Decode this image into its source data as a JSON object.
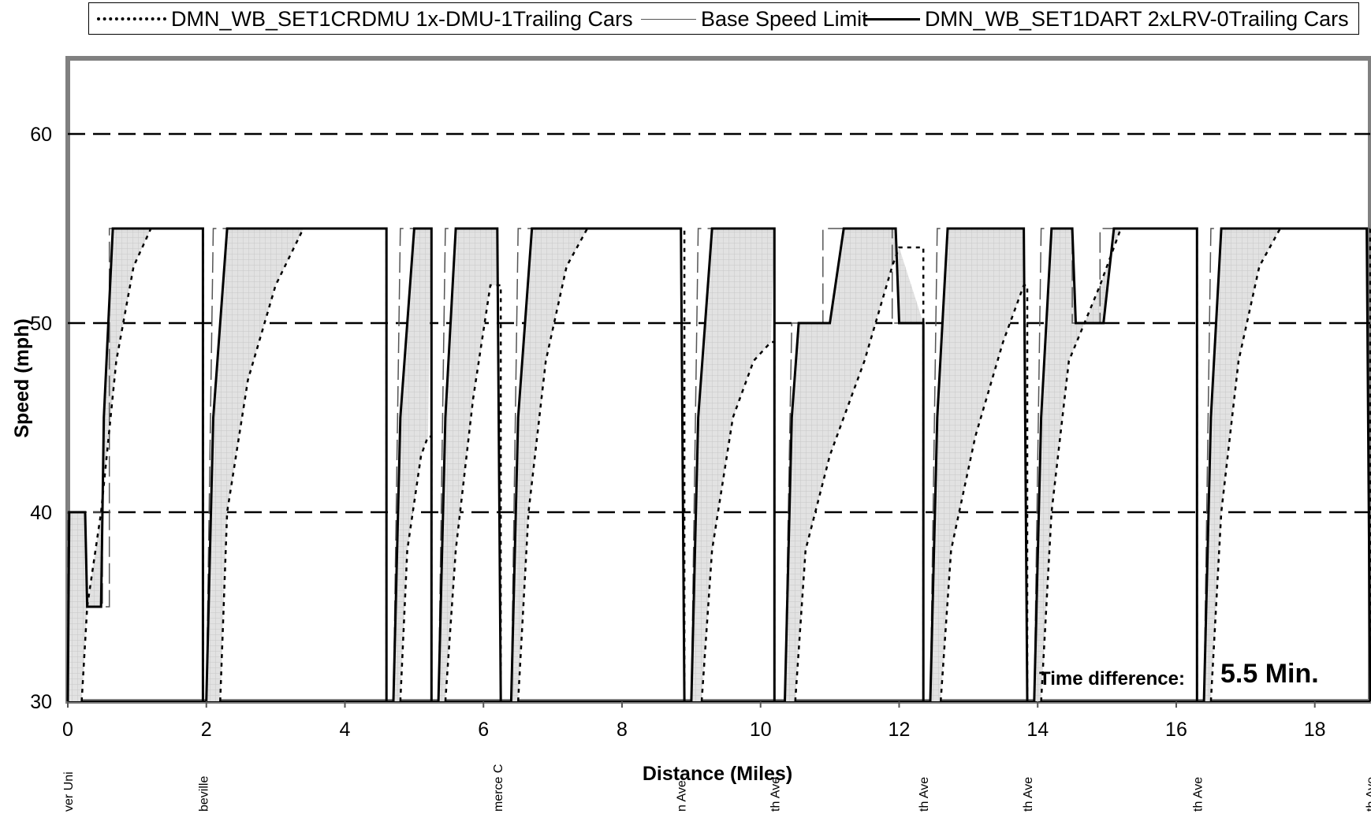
{
  "chart_data": {
    "type": "line",
    "xlabel": "Distance (Miles)",
    "ylabel": "Speed (mph)",
    "xlim": [
      0,
      18.8
    ],
    "ylim": [
      30,
      64
    ],
    "x_ticks": [
      0,
      2,
      4,
      6,
      8,
      10,
      12,
      14,
      16,
      18
    ],
    "y_ticks": [
      30,
      40,
      50,
      60
    ],
    "legend": "top",
    "grid": "major y dashed",
    "series": [
      {
        "name": "DMN_WB_SET1CRDMU 1x-DMU-1Trailing Cars",
        "style": "dotted",
        "color": "#000000"
      },
      {
        "name": "Base Speed Limit",
        "style": "long-dash",
        "color": "#555555"
      },
      {
        "name": "DMN_WB_SET1DART 2xLRV-0Trailing Cars",
        "style": "solid",
        "color": "#000000"
      }
    ],
    "speed_limit": [
      [
        0.0,
        30
      ],
      [
        0.0,
        40
      ],
      [
        0.5,
        40
      ],
      [
        0.5,
        35
      ],
      [
        0.6,
        35
      ],
      [
        0.6,
        55
      ],
      [
        1.9,
        55
      ],
      [
        2.1,
        55
      ],
      [
        4.6,
        55
      ],
      [
        4.8,
        55
      ],
      [
        5.2,
        55
      ],
      [
        5.4,
        55
      ],
      [
        6.2,
        55
      ],
      [
        6.4,
        55
      ],
      [
        8.9,
        55
      ],
      [
        9.1,
        55
      ],
      [
        10.2,
        55
      ],
      [
        10.2,
        50
      ],
      [
        10.9,
        50
      ],
      [
        10.9,
        55
      ],
      [
        11.9,
        55
      ],
      [
        11.9,
        50
      ],
      [
        12.3,
        50
      ],
      [
        12.6,
        50
      ],
      [
        12.6,
        55
      ],
      [
        13.8,
        55
      ],
      [
        14.0,
        55
      ],
      [
        14.5,
        55
      ],
      [
        14.5,
        50
      ],
      [
        14.9,
        50
      ],
      [
        14.9,
        55
      ],
      [
        16.3,
        55
      ],
      [
        16.4,
        55
      ],
      [
        18.8,
        55
      ]
    ],
    "stations": [
      {
        "x": 0.0,
        "label": "ver Uni"
      },
      {
        "x": 1.95,
        "label": "beville"
      },
      {
        "x": 6.2,
        "label": "merce C"
      },
      {
        "x": 8.85,
        "label": "n Ave"
      },
      {
        "x": 10.2,
        "label": "th Ave"
      },
      {
        "x": 12.35,
        "label": "th Ave"
      },
      {
        "x": 13.85,
        "label": "th Ave"
      },
      {
        "x": 16.3,
        "label": "th Ave"
      },
      {
        "x": 18.8,
        "label": "th Ave"
      }
    ],
    "segments": [
      {
        "start": 0.0,
        "end": 1.95,
        "lrv": [
          [
            0.0,
            30
          ],
          [
            0.02,
            40
          ],
          [
            0.25,
            40
          ],
          [
            0.28,
            35
          ],
          [
            0.48,
            35
          ],
          [
            0.52,
            45
          ],
          [
            0.65,
            55
          ],
          [
            1.95,
            55
          ]
        ],
        "dmu": [
          [
            0.2,
            30
          ],
          [
            0.28,
            35
          ],
          [
            0.48,
            40
          ],
          [
            0.7,
            48
          ],
          [
            0.95,
            53
          ],
          [
            1.2,
            55
          ],
          [
            1.9,
            55
          ]
        ],
        "limit": [
          [
            0.0,
            30
          ],
          [
            0.0,
            40
          ],
          [
            0.5,
            40
          ],
          [
            0.5,
            35
          ],
          [
            0.6,
            35
          ],
          [
            0.6,
            55
          ],
          [
            1.9,
            55
          ]
        ]
      },
      {
        "start": 2.0,
        "end": 4.6,
        "lrv": [
          [
            2.0,
            30
          ],
          [
            2.1,
            45
          ],
          [
            2.3,
            55
          ],
          [
            4.6,
            55
          ]
        ],
        "dmu": [
          [
            2.2,
            30
          ],
          [
            2.3,
            40
          ],
          [
            2.6,
            47
          ],
          [
            3.0,
            52
          ],
          [
            3.4,
            55
          ],
          [
            4.55,
            55
          ]
        ],
        "limit": [
          [
            2.0,
            30
          ],
          [
            2.1,
            55
          ],
          [
            4.6,
            55
          ]
        ]
      },
      {
        "start": 4.6,
        "end": 5.25,
        "lrv": [
          [
            4.7,
            30
          ],
          [
            4.8,
            45
          ],
          [
            5.0,
            55
          ],
          [
            5.25,
            55
          ]
        ],
        "dmu": [
          [
            4.8,
            30
          ],
          [
            4.9,
            38
          ],
          [
            5.1,
            43
          ],
          [
            5.2,
            44
          ]
        ],
        "limit": [
          [
            4.7,
            30
          ],
          [
            4.8,
            55
          ],
          [
            5.25,
            55
          ]
        ]
      },
      {
        "start": 5.3,
        "end": 6.25,
        "lrv": [
          [
            5.35,
            30
          ],
          [
            5.45,
            45
          ],
          [
            5.6,
            55
          ],
          [
            6.2,
            55
          ]
        ],
        "dmu": [
          [
            5.45,
            30
          ],
          [
            5.6,
            38
          ],
          [
            5.85,
            46
          ],
          [
            6.1,
            52
          ],
          [
            6.2,
            52
          ]
        ],
        "limit": [
          [
            5.35,
            30
          ],
          [
            5.45,
            55
          ],
          [
            6.2,
            55
          ]
        ]
      },
      {
        "start": 6.3,
        "end": 8.9,
        "lrv": [
          [
            6.4,
            30
          ],
          [
            6.5,
            45
          ],
          [
            6.7,
            55
          ],
          [
            8.85,
            55
          ]
        ],
        "dmu": [
          [
            6.5,
            30
          ],
          [
            6.65,
            40
          ],
          [
            6.9,
            48
          ],
          [
            7.2,
            53
          ],
          [
            7.5,
            55
          ],
          [
            8.85,
            55
          ]
        ],
        "limit": [
          [
            6.4,
            30
          ],
          [
            6.5,
            55
          ],
          [
            8.9,
            55
          ]
        ]
      },
      {
        "start": 8.9,
        "end": 10.2,
        "lrv": [
          [
            9.0,
            30
          ],
          [
            9.1,
            45
          ],
          [
            9.3,
            55
          ],
          [
            10.2,
            55
          ]
        ],
        "dmu": [
          [
            9.15,
            30
          ],
          [
            9.3,
            38
          ],
          [
            9.6,
            45
          ],
          [
            9.9,
            48
          ],
          [
            10.15,
            49
          ]
        ],
        "limit": [
          [
            9.0,
            30
          ],
          [
            9.1,
            55
          ],
          [
            10.2,
            55
          ]
        ]
      },
      {
        "start": 10.3,
        "end": 12.35,
        "lrv": [
          [
            10.35,
            30
          ],
          [
            10.45,
            45
          ],
          [
            10.55,
            50
          ],
          [
            11.0,
            50
          ],
          [
            11.2,
            55
          ],
          [
            11.95,
            55
          ],
          [
            12.0,
            50
          ],
          [
            12.35,
            50
          ]
        ],
        "dmu": [
          [
            10.5,
            30
          ],
          [
            10.65,
            38
          ],
          [
            11.0,
            43
          ],
          [
            11.5,
            48
          ],
          [
            11.9,
            53
          ],
          [
            12.0,
            54
          ]
        ],
        "limit": [
          [
            10.35,
            30
          ],
          [
            10.45,
            50
          ],
          [
            10.9,
            50
          ],
          [
            10.9,
            55
          ],
          [
            11.9,
            55
          ],
          [
            11.9,
            50
          ],
          [
            12.35,
            50
          ]
        ]
      },
      {
        "start": 12.4,
        "end": 13.85,
        "lrv": [
          [
            12.45,
            30
          ],
          [
            12.55,
            45
          ],
          [
            12.7,
            55
          ],
          [
            13.8,
            55
          ]
        ],
        "dmu": [
          [
            12.6,
            30
          ],
          [
            12.75,
            38
          ],
          [
            13.1,
            44
          ],
          [
            13.5,
            49
          ],
          [
            13.8,
            52
          ]
        ],
        "limit": [
          [
            12.45,
            30
          ],
          [
            12.55,
            55
          ],
          [
            13.8,
            55
          ]
        ]
      },
      {
        "start": 13.9,
        "end": 16.3,
        "lrv": [
          [
            13.95,
            30
          ],
          [
            14.05,
            45
          ],
          [
            14.2,
            55
          ],
          [
            14.5,
            55
          ],
          [
            14.55,
            50
          ],
          [
            14.95,
            50
          ],
          [
            15.1,
            55
          ],
          [
            16.3,
            55
          ]
        ],
        "dmu": [
          [
            14.05,
            30
          ],
          [
            14.2,
            40
          ],
          [
            14.45,
            48
          ],
          [
            14.9,
            52
          ],
          [
            15.2,
            55
          ],
          [
            16.3,
            55
          ]
        ],
        "limit": [
          [
            13.95,
            30
          ],
          [
            14.05,
            55
          ],
          [
            14.5,
            55
          ],
          [
            14.5,
            50
          ],
          [
            14.9,
            50
          ],
          [
            14.9,
            55
          ],
          [
            16.3,
            55
          ]
        ]
      },
      {
        "start": 16.35,
        "end": 18.8,
        "lrv": [
          [
            16.4,
            30
          ],
          [
            16.5,
            45
          ],
          [
            16.65,
            55
          ],
          [
            18.75,
            55
          ]
        ],
        "dmu": [
          [
            16.5,
            30
          ],
          [
            16.65,
            40
          ],
          [
            16.9,
            48
          ],
          [
            17.2,
            53
          ],
          [
            17.5,
            55
          ],
          [
            18.75,
            55
          ]
        ],
        "limit": [
          [
            16.4,
            30
          ],
          [
            16.5,
            55
          ],
          [
            18.8,
            55
          ]
        ]
      }
    ],
    "annotation": {
      "label": "Time difference:",
      "value": "5.5 Min."
    }
  }
}
